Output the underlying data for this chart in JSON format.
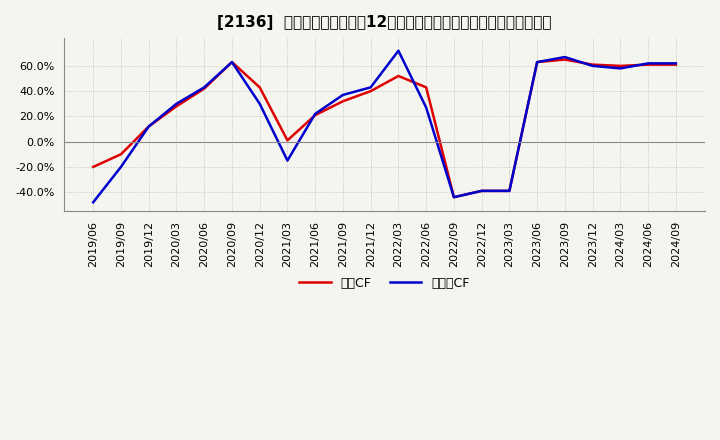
{
  "title": "[2136]  キャッシュフローの12か月移動合計の対前年同期増減率の推移",
  "legend_labels": [
    "営業CF",
    "フリーCF"
  ],
  "line_colors": [
    "#dd0000",
    "#0000cc"
  ],
  "x_labels": [
    "2019/06",
    "2019/09",
    "2019/12",
    "2020/03",
    "2020/06",
    "2020/09",
    "2020/12",
    "2021/03",
    "2021/06",
    "2021/09",
    "2021/12",
    "2022/03",
    "2022/06",
    "2022/09",
    "2022/12",
    "2023/03",
    "2023/06",
    "2023/09",
    "2023/12",
    "2024/03",
    "2024/06",
    "2024/09"
  ],
  "operating_cf": [
    -0.2,
    -0.1,
    0.12,
    0.28,
    0.42,
    0.63,
    0.43,
    0.01,
    0.21,
    0.32,
    0.4,
    0.52,
    0.43,
    -0.44,
    -0.39,
    -0.39,
    0.63,
    0.65,
    0.61,
    0.6,
    0.61,
    0.61
  ],
  "free_cf": [
    -0.48,
    -0.2,
    0.12,
    0.3,
    0.43,
    0.63,
    0.3,
    -0.15,
    0.22,
    0.37,
    0.43,
    0.72,
    0.27,
    -0.44,
    -0.39,
    -0.39,
    0.63,
    0.67,
    0.6,
    0.58,
    0.62,
    0.62
  ],
  "ylim": [
    -0.55,
    0.82
  ],
  "yticks": [
    -0.4,
    -0.2,
    0.0,
    0.2,
    0.4,
    0.6
  ],
  "background_color": "#f5f5f0",
  "plot_bg_color": "#f5f5f0",
  "grid_color": "#aaaaaa",
  "title_fontsize": 11,
  "tick_fontsize": 8,
  "legend_fontsize": 9,
  "line_width": 1.8
}
